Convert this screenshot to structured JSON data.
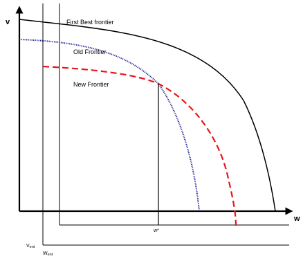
{
  "diagram": {
    "y_axis_label": "v",
    "x_axis_label": "w",
    "w_star_label": "w*",
    "v_ent_main": "V",
    "v_ent_sub": "ent",
    "w_ent_main": "W",
    "w_ent_sub": "ent",
    "curves": [
      {
        "key": "first_best",
        "label": "First Best frontier",
        "color": "#000000",
        "style": "solid"
      },
      {
        "key": "old",
        "label": "Old Frontier",
        "color": "#1f1f8f",
        "style": "dotted"
      },
      {
        "key": "new",
        "label": "New Frontier",
        "color": "#e8141b",
        "style": "dashed"
      }
    ]
  }
}
